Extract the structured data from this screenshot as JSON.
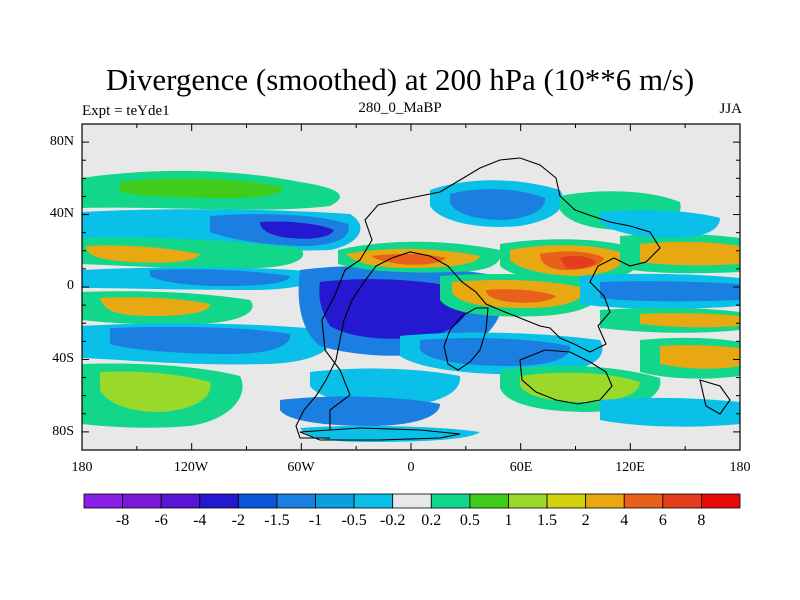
{
  "title": "Divergence (smoothed) at 200 hPa (10**6 m/s)",
  "subtitle_left": "Expt = teYde1",
  "subtitle_center": "280_0_MaBP",
  "subtitle_right": "JJA",
  "lat_labels": [
    "80N",
    "40N",
    "0",
    "40S",
    "80S"
  ],
  "lon_labels": [
    "180",
    "120W",
    "60W",
    "0",
    "60E",
    "120E",
    "180"
  ],
  "colorbar": {
    "labels": [
      "-8",
      "-6",
      "-4",
      "-2",
      "-1.5",
      "-1",
      "-0.5",
      "-0.2",
      "0.2",
      "0.5",
      "1",
      "1.5",
      "2",
      "4",
      "6",
      "8"
    ],
    "colors": [
      "#8a1fe6",
      "#7a18d8",
      "#5a14d6",
      "#2418d0",
      "#0a55d8",
      "#1a7fe0",
      "#0aa0e0",
      "#0ac0e8",
      "#e8e8e8",
      "#12d78a",
      "#40cc1a",
      "#9ad82a",
      "#d2d20e",
      "#e8a812",
      "#e8601a",
      "#e63c1e",
      "#e60a0a"
    ]
  },
  "colors": {
    "background": "#e8e8e8",
    "coast": "#000000"
  }
}
